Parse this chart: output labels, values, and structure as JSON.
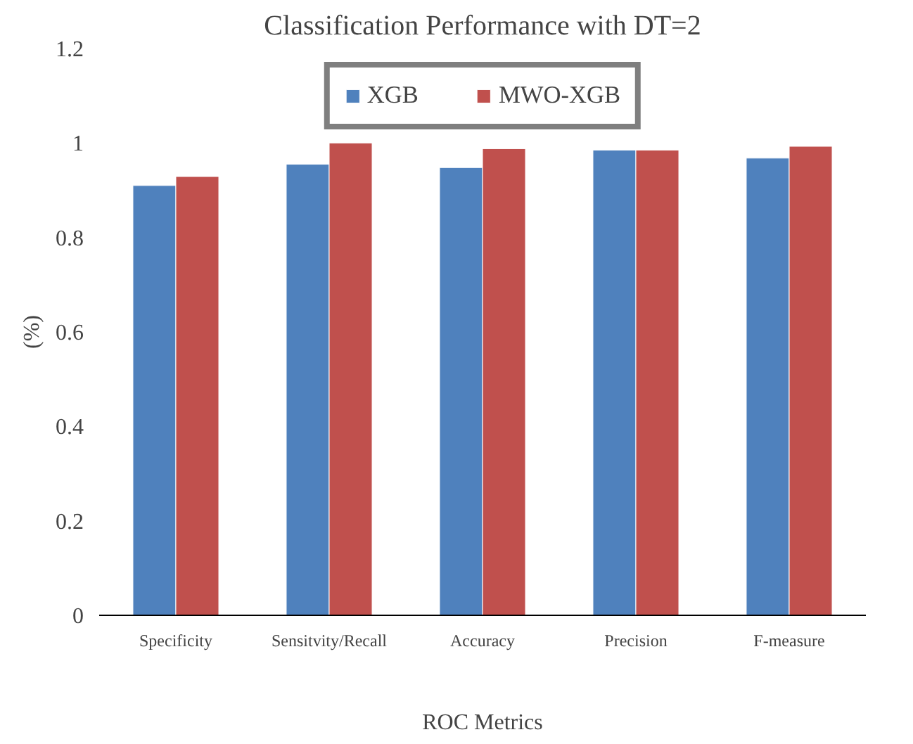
{
  "chart_data": {
    "type": "bar",
    "title": "Classification Performance with DT=2",
    "xlabel": "ROC Metrics",
    "ylabel": "(%)",
    "categories": [
      "Specificity",
      "Sensitvity/Recall",
      "Accuracy",
      "Precision",
      "F-measure"
    ],
    "series": [
      {
        "name": "XGB",
        "color": "#4f81bd",
        "values": [
          0.91,
          0.955,
          0.948,
          0.985,
          0.968
        ]
      },
      {
        "name": "MWO-XGB",
        "color": "#c0504d",
        "values": [
          0.929,
          1.0,
          0.988,
          0.985,
          0.993
        ]
      }
    ],
    "ylim": [
      0,
      1.2
    ],
    "yticks": [
      0,
      0.2,
      0.4,
      0.6,
      0.8,
      1,
      1.2
    ],
    "grid": false,
    "legend": "top"
  }
}
